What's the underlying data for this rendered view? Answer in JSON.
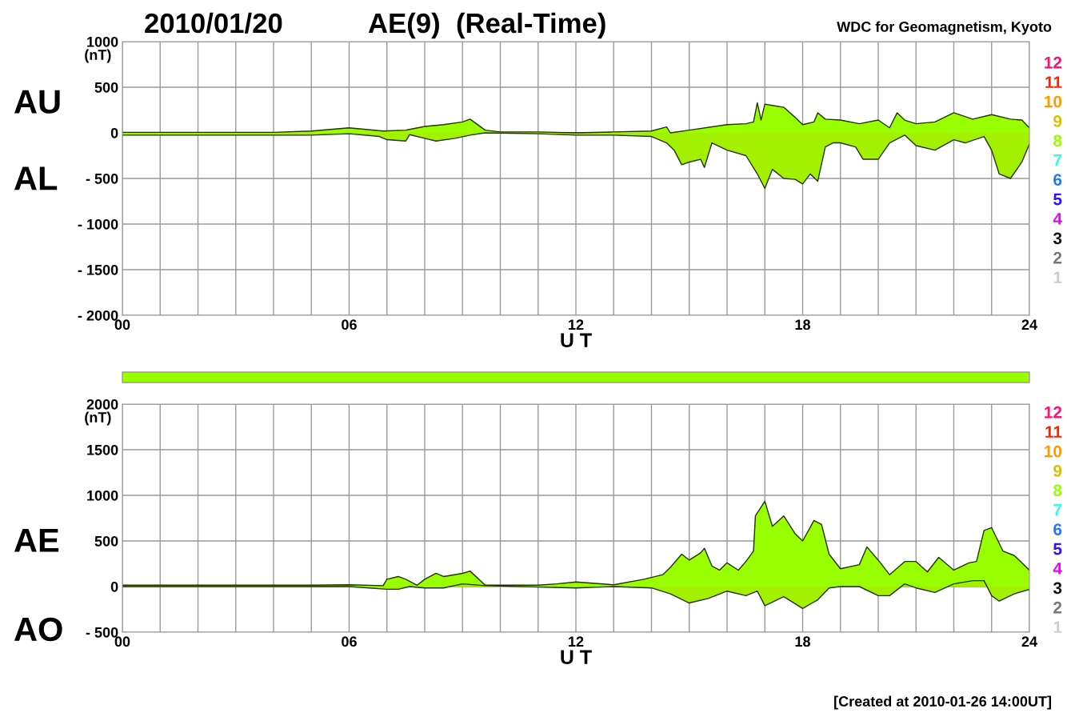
{
  "chart_data": [
    {
      "type": "area",
      "title": "2010/01/20",
      "subtitle": "AE(9)  (Real-Time)",
      "xlabel": "U T",
      "ylabel": "(nT)",
      "xlim": [
        0,
        24
      ],
      "xticks": [
        {
          "value": 0,
          "label": "00"
        },
        {
          "value": 1,
          "label": null
        },
        {
          "value": 2,
          "label": null
        },
        {
          "value": 3,
          "label": null
        },
        {
          "value": 4,
          "label": null
        },
        {
          "value": 5,
          "label": null
        },
        {
          "value": 6,
          "label": "06"
        },
        {
          "value": 7,
          "label": null
        },
        {
          "value": 8,
          "label": null
        },
        {
          "value": 9,
          "label": null
        },
        {
          "value": 10,
          "label": null
        },
        {
          "value": 11,
          "label": null
        },
        {
          "value": 12,
          "label": "12"
        },
        {
          "value": 13,
          "label": null
        },
        {
          "value": 14,
          "label": null
        },
        {
          "value": 15,
          "label": null
        },
        {
          "value": 16,
          "label": null
        },
        {
          "value": 17,
          "label": null
        },
        {
          "value": 18,
          "label": "18"
        },
        {
          "value": 19,
          "label": null
        },
        {
          "value": 20,
          "label": null
        },
        {
          "value": 21,
          "label": null
        },
        {
          "value": 22,
          "label": null
        },
        {
          "value": 23,
          "label": null
        },
        {
          "value": 24,
          "label": "24"
        }
      ],
      "ylim": [
        -2000,
        1000
      ],
      "yticks": [
        1000,
        500,
        0,
        {
          "value": -500,
          "label": "- 500"
        },
        {
          "value": -1000,
          "label": "- 1000"
        },
        {
          "value": -1500,
          "label": "- 1500"
        },
        {
          "value": -2000,
          "label": "- 2000"
        }
      ],
      "grid": true,
      "series": [
        {
          "name": "AU",
          "color": "#99ff00",
          "x": [
            0,
            1,
            2,
            3,
            4,
            5,
            6,
            6.9,
            7.5,
            8,
            8.5,
            9,
            9.2,
            9.6,
            10,
            11,
            12,
            13,
            14,
            14.4,
            14.5,
            15,
            16,
            16.5,
            16.7,
            16.8,
            16.9,
            17,
            17.2,
            17.5,
            17.8,
            18,
            18.3,
            18.4,
            18.6,
            19,
            19.5,
            20,
            20.3,
            20.5,
            20.7,
            21,
            21.5,
            22,
            22.5,
            23,
            23.5,
            23.8,
            24
          ],
          "values": [
            5,
            5,
            5,
            5,
            5,
            20,
            55,
            20,
            30,
            70,
            90,
            120,
            150,
            30,
            10,
            10,
            0,
            10,
            20,
            65,
            0,
            30,
            90,
            100,
            120,
            330,
            140,
            315,
            300,
            280,
            170,
            90,
            120,
            220,
            150,
            140,
            100,
            140,
            55,
            220,
            140,
            100,
            120,
            220,
            150,
            200,
            150,
            140,
            55
          ]
        },
        {
          "name": "AL",
          "color": "#a3f000",
          "x": [
            0,
            1,
            2,
            3,
            4,
            5,
            6,
            6.8,
            7,
            7.5,
            7.6,
            8,
            8.3,
            8.8,
            9.2,
            9.6,
            11,
            12,
            13,
            14,
            14.4,
            14.6,
            14.8,
            15,
            15.3,
            15.4,
            15.6,
            16,
            16.5,
            16.8,
            17,
            17.2,
            17.5,
            17.8,
            18,
            18.2,
            18.4,
            18.6,
            18.8,
            19,
            19.4,
            19.6,
            20,
            20.3,
            20.7,
            21,
            21.5,
            22,
            22.3,
            22.8,
            23,
            23.2,
            23.5,
            23.8,
            24
          ],
          "values": [
            -25,
            -25,
            -25,
            -25,
            -25,
            -25,
            -10,
            -40,
            -75,
            -90,
            -20,
            -60,
            -90,
            -60,
            -25,
            0,
            -10,
            -25,
            -25,
            -40,
            -110,
            -190,
            -350,
            -320,
            -290,
            -380,
            -110,
            -190,
            -250,
            -450,
            -610,
            -400,
            -500,
            -510,
            -560,
            -450,
            -530,
            -155,
            -110,
            -110,
            -155,
            -290,
            -290,
            -110,
            -25,
            -140,
            -190,
            -75,
            -110,
            -40,
            -190,
            -450,
            -500,
            -320,
            -125
          ]
        }
      ],
      "annotations": [
        "12",
        "11",
        "10",
        "9",
        "8",
        "7",
        "6",
        "5",
        "4",
        "3",
        "2",
        "1",
        "WDC for Geomagnetism, Kyoto"
      ]
    },
    {
      "type": "area",
      "xlabel": "U T",
      "ylabel": "(nT)",
      "xlim": [
        0,
        24
      ],
      "xticks": [
        {
          "value": 0,
          "label": "00"
        },
        {
          "value": 1,
          "label": null
        },
        {
          "value": 2,
          "label": null
        },
        {
          "value": 3,
          "label": null
        },
        {
          "value": 4,
          "label": null
        },
        {
          "value": 5,
          "label": null
        },
        {
          "value": 6,
          "label": "06"
        },
        {
          "value": 7,
          "label": null
        },
        {
          "value": 8,
          "label": null
        },
        {
          "value": 9,
          "label": null
        },
        {
          "value": 10,
          "label": null
        },
        {
          "value": 11,
          "label": null
        },
        {
          "value": 12,
          "label": "12"
        },
        {
          "value": 13,
          "label": null
        },
        {
          "value": 14,
          "label": null
        },
        {
          "value": 15,
          "label": null
        },
        {
          "value": 16,
          "label": null
        },
        {
          "value": 17,
          "label": null
        },
        {
          "value": 18,
          "label": "18"
        },
        {
          "value": 19,
          "label": null
        },
        {
          "value": 20,
          "label": null
        },
        {
          "value": 21,
          "label": null
        },
        {
          "value": 22,
          "label": null
        },
        {
          "value": 23,
          "label": null
        },
        {
          "value": 24,
          "label": "24"
        }
      ],
      "ylim": [
        -500,
        2000
      ],
      "yticks": [
        2000,
        1500,
        1000,
        500,
        0,
        {
          "value": -500,
          "label": "- 500"
        }
      ],
      "grid": true,
      "series": [
        {
          "name": "AE",
          "color": "#99ff00",
          "x": [
            0,
            1,
            2,
            3,
            4,
            5,
            6,
            6.9,
            7,
            7.3,
            7.5,
            7.8,
            8,
            8.3,
            8.5,
            9,
            9.2,
            9.6,
            10,
            11,
            11.5,
            12,
            13,
            13.8,
            14.3,
            14.5,
            14.8,
            15,
            15.3,
            15.4,
            15.6,
            15.8,
            16,
            16.3,
            16.5,
            16.7,
            16.75,
            17,
            17.2,
            17.5,
            17.8,
            18,
            18.3,
            18.5,
            18.7,
            19,
            19.5,
            19.7,
            20,
            20.3,
            20.7,
            21,
            21.3,
            21.6,
            22,
            22.4,
            22.6,
            22.8,
            23,
            23.3,
            23.6,
            24
          ],
          "values": [
            15,
            15,
            15,
            15,
            15,
            15,
            20,
            10,
            80,
            110,
            80,
            15,
            80,
            145,
            110,
            145,
            170,
            15,
            15,
            15,
            30,
            50,
            20,
            80,
            130,
            210,
            355,
            290,
            370,
            420,
            225,
            180,
            260,
            180,
            275,
            390,
            775,
            935,
            660,
            775,
            580,
            500,
            725,
            680,
            355,
            195,
            240,
            435,
            290,
            130,
            275,
            275,
            160,
            320,
            180,
            260,
            275,
            615,
            645,
            390,
            340,
            180
          ]
        },
        {
          "name": "AO",
          "color": "#a3f000",
          "x": [
            0,
            1,
            2,
            3,
            4,
            5,
            6,
            7,
            7.3,
            7.6,
            8,
            8.5,
            9,
            9.6,
            12,
            13,
            14,
            14.5,
            15,
            15.5,
            16,
            16.5,
            16.8,
            17,
            17.5,
            18,
            18.4,
            18.7,
            19,
            19.5,
            20,
            20.3,
            20.7,
            21,
            21.5,
            22,
            22.5,
            22.8,
            23,
            23.2,
            23.6,
            24
          ],
          "values": [
            0,
            0,
            0,
            0,
            0,
            0,
            0,
            -30,
            -30,
            0,
            -15,
            -15,
            30,
            10,
            -15,
            0,
            -15,
            -80,
            -180,
            -130,
            -50,
            -100,
            -50,
            -210,
            -110,
            -240,
            -145,
            -15,
            0,
            0,
            -100,
            -100,
            30,
            -15,
            -65,
            30,
            65,
            65,
            -100,
            -160,
            -80,
            -30
          ]
        }
      ],
      "annotations": [
        "12",
        "11",
        "10",
        "9",
        "8",
        "7",
        "6",
        "5",
        "4",
        "3",
        "2",
        "1",
        "[Created at 2010-01-26 14:00UT]"
      ]
    }
  ]
}
